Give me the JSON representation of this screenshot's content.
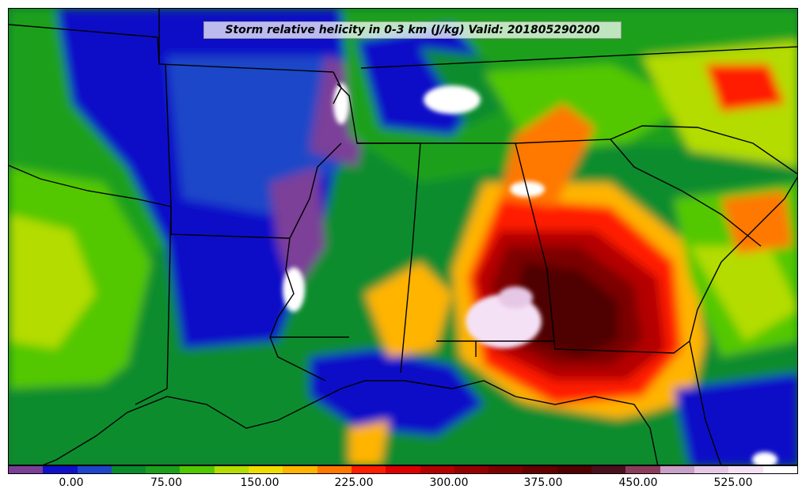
{
  "title": "Storm relative helicity in 0-3 km (J/kg) Valid: 201805290200",
  "colorbar": {
    "colors": [
      "#7b3f98",
      "#1010c8",
      "#1e46c8",
      "#0a8c2d",
      "#1ca01c",
      "#52c800",
      "#b4dc00",
      "#f0dc00",
      "#ffb400",
      "#ff7800",
      "#ff1e00",
      "#dc0000",
      "#b40000",
      "#960000",
      "#7d0000",
      "#640000",
      "#500000",
      "#4b0f1e",
      "#8c3c5a",
      "#c8a0c8",
      "#e6c8e6",
      "#f5e1f5",
      "#ffffff"
    ],
    "tick_labels": [
      "0.00",
      "75.00",
      "150.00",
      "225.00",
      "300.00",
      "375.00",
      "450.00",
      "525.00"
    ]
  }
}
